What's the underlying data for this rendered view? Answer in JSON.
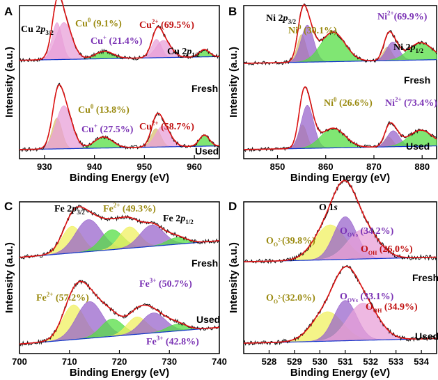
{
  "colors": {
    "peak1": "#e8a0d8",
    "peak1_dark": "#b040a0",
    "metal": "#d8c070",
    "metal_dark": "#8a7010",
    "satellite": "#55dd44",
    "violet": "#9966cc",
    "yellow": "#f0f060",
    "fit": "#dd1111",
    "raw": "#111111",
    "baseline": "#1133cc",
    "ann_gold": "#9a8a10",
    "ann_purple": "#7a32b4",
    "ann_red": "#c01010"
  },
  "chart_data": [
    {
      "panel": "A",
      "type": "line",
      "xlabel": "Binding Energy (eV)",
      "ylabel": "Intensity (a.u.)",
      "xlim": [
        925,
        965
      ],
      "xticks": [
        930,
        940,
        950,
        960
      ],
      "labels": {
        "main": "Cu 2p3/2",
        "secondary": "Cu 2p1/2"
      },
      "series": [
        {
          "name": "Fresh",
          "offset": 1.45,
          "peaks": [
            {
              "center": 932.5,
              "height": 0.6,
              "width": 1.0,
              "color": "peak1",
              "kind": "Cu0"
            },
            {
              "center": 933.9,
              "height": 0.6,
              "width": 1.6,
              "color": "peak1",
              "kind": "Cu+"
            },
            {
              "center": 942.0,
              "height": 0.12,
              "width": 1.8,
              "color": "satellite"
            },
            {
              "center": 952.4,
              "height": 0.3,
              "width": 1.0,
              "color": "peak1"
            },
            {
              "center": 953.8,
              "height": 0.28,
              "width": 1.5,
              "color": "peak1"
            },
            {
              "center": 962.0,
              "height": 0.12,
              "width": 1.0,
              "color": "satellite"
            }
          ]
        },
        {
          "name": "Used",
          "offset": 0.0,
          "peaks": [
            {
              "center": 932.5,
              "height": 0.5,
              "width": 1.0,
              "color": "metal",
              "kind": "Cu0"
            },
            {
              "center": 933.9,
              "height": 0.7,
              "width": 1.6,
              "color": "peak1",
              "kind": "Cu+"
            },
            {
              "center": 941.8,
              "height": 0.18,
              "width": 1.8,
              "color": "satellite"
            },
            {
              "center": 952.3,
              "height": 0.3,
              "width": 1.0,
              "color": "metal"
            },
            {
              "center": 953.7,
              "height": 0.34,
              "width": 1.5,
              "color": "peak1"
            },
            {
              "center": 962.0,
              "height": 0.18,
              "width": 1.0,
              "color": "satellite"
            }
          ]
        }
      ],
      "annotations": {
        "fresh": [
          "Cu0 (9.1%)",
          "Cu+ (21.4%)",
          "Cu2+ (69.5%)"
        ],
        "used": [
          "Cu0 (13.8%)",
          "Cu+ (27.5%)",
          "Cu2+ (58.7%)"
        ]
      }
    },
    {
      "panel": "B",
      "type": "line",
      "xlabel": "Binding Energy (eV)",
      "ylabel": "Intensity (a.u.)",
      "xlim": [
        843,
        883
      ],
      "xticks": [
        850,
        860,
        870,
        880
      ],
      "labels": {
        "main": "Ni 2p3/2",
        "secondary": "Ni 2p1/2"
      },
      "series": [
        {
          "name": "Fresh",
          "offset": 1.4,
          "peaks": [
            {
              "center": 855.0,
              "height": 0.45,
              "width": 0.9,
              "color": "metal",
              "kind": "Ni0"
            },
            {
              "center": 856.2,
              "height": 0.6,
              "width": 1.3,
              "color": "violet",
              "kind": "Ni2+"
            },
            {
              "center": 861.5,
              "height": 0.48,
              "width": 2.5,
              "color": "satellite"
            },
            {
              "center": 872.8,
              "height": 0.22,
              "width": 0.9,
              "color": "metal"
            },
            {
              "center": 873.9,
              "height": 0.3,
              "width": 1.3,
              "color": "violet"
            },
            {
              "center": 879.7,
              "height": 0.28,
              "width": 2.5,
              "color": "satellite"
            }
          ]
        },
        {
          "name": "Used",
          "offset": 0.0,
          "peaks": [
            {
              "center": 855.2,
              "height": 0.38,
              "width": 0.9,
              "color": "metal",
              "kind": "Ni0"
            },
            {
              "center": 856.2,
              "height": 0.7,
              "width": 1.3,
              "color": "violet",
              "kind": "Ni2+"
            },
            {
              "center": 861.5,
              "height": 0.32,
              "width": 2.5,
              "color": "satellite"
            },
            {
              "center": 873.0,
              "height": 0.16,
              "width": 0.9,
              "color": "metal"
            },
            {
              "center": 874.0,
              "height": 0.26,
              "width": 1.3,
              "color": "violet"
            },
            {
              "center": 879.7,
              "height": 0.26,
              "width": 2.5,
              "color": "satellite"
            }
          ]
        }
      ],
      "annotations": {
        "fresh": [
          "Ni0 (30.1%)",
          "Ni2+(69.9%)"
        ],
        "used": [
          "Ni0 (26.6%)",
          "Ni2+ (73.4%)"
        ]
      }
    },
    {
      "panel": "C",
      "type": "line",
      "xlabel": "Binding Energy (eV)",
      "ylabel": "Intensity (a.u.)",
      "xlim": [
        700,
        740
      ],
      "xticks": [
        700,
        710,
        720,
        730,
        740
      ],
      "labels": {
        "main": "Fe 2p3/2",
        "secondary": "Fe 2p1/2"
      },
      "series": [
        {
          "name": "Fresh",
          "offset": 1.3,
          "peaks": [
            {
              "center": 710.5,
              "height": 0.4,
              "width": 2.0,
              "color": "yellow",
              "kind": "Fe2+"
            },
            {
              "center": 713.8,
              "height": 0.48,
              "width": 2.6,
              "color": "violet",
              "kind": "Fe3+"
            },
            {
              "center": 718.5,
              "height": 0.3,
              "width": 2.2,
              "color": "satellite"
            },
            {
              "center": 722.0,
              "height": 0.32,
              "width": 2.0,
              "color": "yellow"
            },
            {
              "center": 726.5,
              "height": 0.32,
              "width": 2.4,
              "color": "violet"
            },
            {
              "center": 731.5,
              "height": 0.1,
              "width": 2.0,
              "color": "satellite"
            }
          ]
        },
        {
          "name": "Used",
          "offset": 0.0,
          "peaks": [
            {
              "center": 710.8,
              "height": 0.52,
              "width": 2.2,
              "color": "yellow",
              "kind": "Fe2+"
            },
            {
              "center": 714.0,
              "height": 0.55,
              "width": 2.6,
              "color": "violet",
              "kind": "Fe3+"
            },
            {
              "center": 718.5,
              "height": 0.26,
              "width": 2.2,
              "color": "satellite"
            },
            {
              "center": 723.5,
              "height": 0.26,
              "width": 2.0,
              "color": "yellow"
            },
            {
              "center": 726.8,
              "height": 0.3,
              "width": 2.4,
              "color": "violet"
            },
            {
              "center": 731.5,
              "height": 0.1,
              "width": 2.0,
              "color": "satellite"
            }
          ]
        }
      ],
      "annotations": {
        "fresh": [
          "Fe2+ (49.3%)",
          "Fe3+ (50.7%)"
        ],
        "used": [
          "Fe2+ (57.2%)",
          "Fe3+ (42.8%)"
        ]
      }
    },
    {
      "panel": "D",
      "type": "line",
      "xlabel": "Binding Energy (eV)",
      "ylabel": "Intensity (a.u.)",
      "xlim": [
        527,
        534.6
      ],
      "xticks": [
        528,
        529,
        530,
        531,
        532,
        533,
        534
      ],
      "labels": {
        "main": "O 1s"
      },
      "series": [
        {
          "name": "Fresh",
          "offset": 1.05,
          "peaks": [
            {
              "center": 530.4,
              "height": 0.45,
              "width": 0.6,
              "color": "yellow",
              "kind": "O"
            },
            {
              "center": 531.0,
              "height": 0.55,
              "width": 0.45,
              "color": "violet",
              "kind": "OVs"
            },
            {
              "center": 531.7,
              "height": 0.38,
              "width": 0.6,
              "color": "peak1",
              "kind": "OH"
            }
          ]
        },
        {
          "name": "Used",
          "offset": 0.0,
          "peaks": [
            {
              "center": 530.3,
              "height": 0.38,
              "width": 0.6,
              "color": "yellow",
              "kind": "O"
            },
            {
              "center": 531.0,
              "height": 0.52,
              "width": 0.45,
              "color": "violet",
              "kind": "OVs"
            },
            {
              "center": 531.7,
              "height": 0.48,
              "width": 0.6,
              "color": "peak1",
              "kind": "OH"
            }
          ]
        }
      ],
      "annotations": {
        "fresh": [
          "O (39.8%)",
          "O (34.2%)",
          "O (26.0%)"
        ],
        "used": [
          "O (32.0%)",
          "O (33.1%)",
          "O (34.9%)"
        ]
      }
    }
  ]
}
